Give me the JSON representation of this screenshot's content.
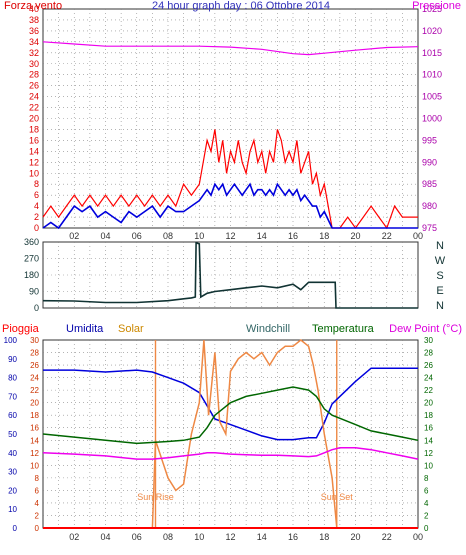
{
  "title": "24 hour graph day : 06 Ottobre 2014",
  "colors": {
    "red": "#ff0000",
    "blue": "#0000dd",
    "magenta": "#ee00ee",
    "dark": "#113333",
    "green": "#006600",
    "orange": "#ee8844",
    "purple": "#6a006a",
    "tickdark": "#333333"
  },
  "chart_data": [
    {
      "type": "line",
      "left_label": "Forza vento",
      "right_label": "Pressione",
      "x_ticks": [
        "02",
        "04",
        "06",
        "08",
        "10",
        "12",
        "14",
        "16",
        "18",
        "20",
        "22",
        "00"
      ],
      "x_range": [
        0,
        24
      ],
      "y_left_ticks": [
        "0",
        "2",
        "4",
        "6",
        "8",
        "10",
        "12",
        "14",
        "16",
        "18",
        "20",
        "22",
        "24",
        "26",
        "28",
        "30",
        "32",
        "34",
        "36",
        "38",
        "40"
      ],
      "y_left_range": [
        0,
        40
      ],
      "y_right_ticks": [
        "975",
        "980",
        "985",
        "990",
        "995",
        "1000",
        "1005",
        "1010",
        "1015",
        "1020",
        "1025"
      ],
      "y_right_range": [
        975,
        1025
      ],
      "series": [
        {
          "key": "gust",
          "color": "#ff0000",
          "x": [
            0,
            0.5,
            1,
            1.5,
            2,
            2.5,
            3,
            3.5,
            4,
            4.5,
            5,
            5.5,
            6,
            6.5,
            7,
            7.5,
            8,
            8.5,
            9,
            9.5,
            10,
            10.25,
            10.5,
            10.75,
            11,
            11.25,
            11.5,
            11.75,
            12,
            12.25,
            12.5,
            12.75,
            13,
            13.25,
            13.5,
            13.75,
            14,
            14.25,
            14.5,
            14.75,
            15,
            15.25,
            15.5,
            15.75,
            16,
            16.25,
            16.5,
            16.75,
            17,
            17.25,
            17.5,
            17.75,
            18,
            18.5,
            19,
            19.5,
            20,
            20.5,
            21,
            21.5,
            22,
            22.5,
            23,
            23.5,
            24
          ],
          "y": [
            2,
            4,
            2,
            4,
            6,
            4,
            6,
            4,
            6,
            4,
            6,
            4,
            6,
            4,
            6,
            4,
            6,
            4,
            8,
            6,
            8,
            12,
            16,
            14,
            18,
            12,
            16,
            10,
            14,
            12,
            16,
            12,
            10,
            14,
            16,
            12,
            14,
            10,
            14,
            12,
            18,
            16,
            12,
            14,
            12,
            16,
            10,
            12,
            14,
            8,
            10,
            6,
            8,
            0,
            0,
            2,
            0,
            2,
            4,
            2,
            0,
            4,
            2,
            2,
            2
          ]
        },
        {
          "key": "wind",
          "color": "#0000dd",
          "x": [
            0,
            0.5,
            1,
            1.5,
            2,
            2.5,
            3,
            3.5,
            4,
            4.5,
            5,
            5.5,
            6,
            6.5,
            7,
            7.5,
            8,
            8.5,
            9,
            9.5,
            10,
            10.25,
            10.5,
            10.75,
            11,
            11.25,
            11.5,
            11.75,
            12,
            12.25,
            12.5,
            12.75,
            13,
            13.25,
            13.5,
            13.75,
            14,
            14.25,
            14.5,
            14.75,
            15,
            15.25,
            15.5,
            15.75,
            16,
            16.25,
            16.5,
            16.75,
            17,
            17.25,
            17.5,
            17.75,
            18,
            18.5,
            19,
            19.5,
            20,
            20.5,
            21,
            21.5,
            22,
            22.5,
            23,
            23.5,
            24
          ],
          "y": [
            0,
            1,
            0,
            2,
            4,
            3,
            4,
            2,
            3,
            2,
            1,
            3,
            2,
            3,
            4,
            2,
            4,
            3,
            3,
            4,
            5,
            6,
            7,
            6,
            8,
            7,
            8,
            6,
            7,
            8,
            7,
            6,
            7,
            8,
            6,
            7,
            7,
            6,
            7,
            6,
            8,
            7,
            6,
            7,
            6,
            7,
            5,
            6,
            5,
            4,
            4,
            2,
            3,
            0,
            0,
            0,
            0,
            0,
            0,
            0,
            0,
            0,
            0,
            0,
            0
          ]
        },
        {
          "key": "pressure",
          "axis": "right",
          "color": "#ee00ee",
          "x": [
            0,
            2,
            4,
            6,
            8,
            10,
            12,
            14,
            16,
            17,
            18,
            20,
            22,
            24
          ],
          "y": [
            1017.5,
            1017,
            1016.5,
            1016.5,
            1016.5,
            1016.5,
            1016.3,
            1015.8,
            1014.8,
            1014.6,
            1014.9,
            1015.6,
            1016.2,
            1016.4
          ]
        }
      ]
    },
    {
      "type": "line",
      "right_label_lines": [
        "N",
        "W",
        "S",
        "E",
        "N"
      ],
      "x_range": [
        0,
        24
      ],
      "y_ticks": [
        "0",
        "90",
        "180",
        "270",
        "360"
      ],
      "y_range": [
        0,
        360
      ],
      "series": [
        {
          "key": "direction",
          "color": "#113333",
          "x": [
            0,
            2,
            4,
            6,
            8,
            9,
            9.5,
            9.75,
            9.8,
            10,
            10.1,
            10.5,
            11,
            12,
            13,
            14,
            15,
            16,
            16.5,
            17,
            17.5,
            18,
            18.7,
            18.75,
            24
          ],
          "y": [
            40,
            38,
            30,
            30,
            40,
            50,
            55,
            60,
            355,
            350,
            60,
            80,
            90,
            100,
            110,
            120,
            110,
            130,
            100,
            140,
            140,
            140,
            140,
            0,
            0
          ]
        }
      ]
    },
    {
      "type": "line",
      "labels": {
        "rain": "Pioggia",
        "humidity": "Umidita",
        "solar": "Solar",
        "windchill": "Windchill",
        "temperature": "Temperatura",
        "dewpoint": "Dew Point (°C)"
      },
      "x_range": [
        0,
        24
      ],
      "y_left_outer_ticks": [
        "0",
        "10",
        "20",
        "30",
        "40",
        "50",
        "60",
        "70",
        "80",
        "90",
        "100"
      ],
      "y_left_outer_range": [
        0,
        100
      ],
      "y_left_inner_ticks": [
        "0",
        "2",
        "4",
        "6",
        "8",
        "10",
        "12",
        "14",
        "16",
        "18",
        "20",
        "22",
        "24",
        "26",
        "28",
        "30"
      ],
      "y_left_inner_range": [
        0,
        30
      ],
      "y_right_ticks": [
        "0",
        "2",
        "4",
        "6",
        "8",
        "10",
        "12",
        "14",
        "16",
        "18",
        "20",
        "22",
        "24",
        "26",
        "28",
        "30"
      ],
      "y_right_range": [
        0,
        30
      ],
      "annotations": {
        "sunrise": "Sun Rise",
        "sunset": "Sun Set"
      },
      "sunrise_hour": 7.2,
      "sunset_hour": 18.8,
      "series": [
        {
          "key": "humidity",
          "axis": "outer",
          "color": "#0000dd",
          "x": [
            0,
            2,
            4,
            6,
            7,
            8,
            9,
            10,
            10.5,
            11,
            12,
            13,
            14,
            15,
            16,
            17,
            17.5,
            18,
            18.5,
            19,
            20,
            21,
            22,
            23,
            24
          ],
          "y": [
            84,
            84,
            83,
            84,
            83,
            80,
            77,
            72,
            65,
            58,
            55,
            52,
            49,
            47,
            47,
            48,
            48,
            56,
            66,
            70,
            78,
            85,
            85,
            85,
            85
          ]
        },
        {
          "key": "solar",
          "axis": "inner",
          "color": "#ee8844",
          "x": [
            0,
            7,
            7.2,
            8,
            8.5,
            9,
            9.5,
            10,
            10.3,
            10.6,
            11,
            11.3,
            11.7,
            12,
            12.5,
            13,
            13.5,
            14,
            14.5,
            15,
            15.5,
            16,
            16.5,
            17,
            17.3,
            17.6,
            18,
            18.5,
            18.8,
            24
          ],
          "y": [
            0,
            0,
            14,
            8,
            6,
            7,
            15,
            20,
            30,
            18,
            28,
            17,
            15,
            25,
            27,
            28,
            27,
            28,
            26,
            28,
            29,
            29,
            30,
            29,
            26,
            22,
            15,
            8,
            0,
            0
          ]
        },
        {
          "key": "windchill",
          "axis": "inner",
          "color": "#006600",
          "x": [
            0,
            2,
            4,
            6,
            8,
            9,
            10,
            10.5,
            11,
            12,
            13,
            14,
            15,
            16,
            17,
            17.5,
            18,
            18.5,
            19,
            20,
            21,
            22,
            23,
            24
          ],
          "y": [
            15,
            14.5,
            14,
            13.5,
            13.8,
            14,
            14.5,
            16,
            18,
            20,
            21,
            21.5,
            22,
            22.5,
            22,
            21,
            19,
            18,
            17.5,
            16.5,
            15.5,
            15,
            14.5,
            14
          ]
        },
        {
          "key": "dewpoint",
          "axis": "inner",
          "color": "#ee00ee",
          "x": [
            0,
            2,
            4,
            6,
            7,
            8,
            9,
            10,
            10.5,
            11,
            12,
            13,
            14,
            15,
            16,
            17,
            17.5,
            18,
            18.5,
            19,
            20,
            21,
            22,
            23,
            24
          ],
          "y": [
            12,
            11.8,
            11.5,
            11,
            11,
            11.2,
            11.5,
            11.8,
            12,
            12,
            11.8,
            11.7,
            11.6,
            11.6,
            11.5,
            11.4,
            11.5,
            12,
            12.5,
            12.8,
            12.8,
            12.5,
            12,
            11.5,
            11
          ]
        },
        {
          "key": "rain",
          "axis": "inner",
          "color": "#ff0000",
          "x": [
            0,
            24
          ],
          "y": [
            0,
            0
          ]
        }
      ]
    }
  ]
}
